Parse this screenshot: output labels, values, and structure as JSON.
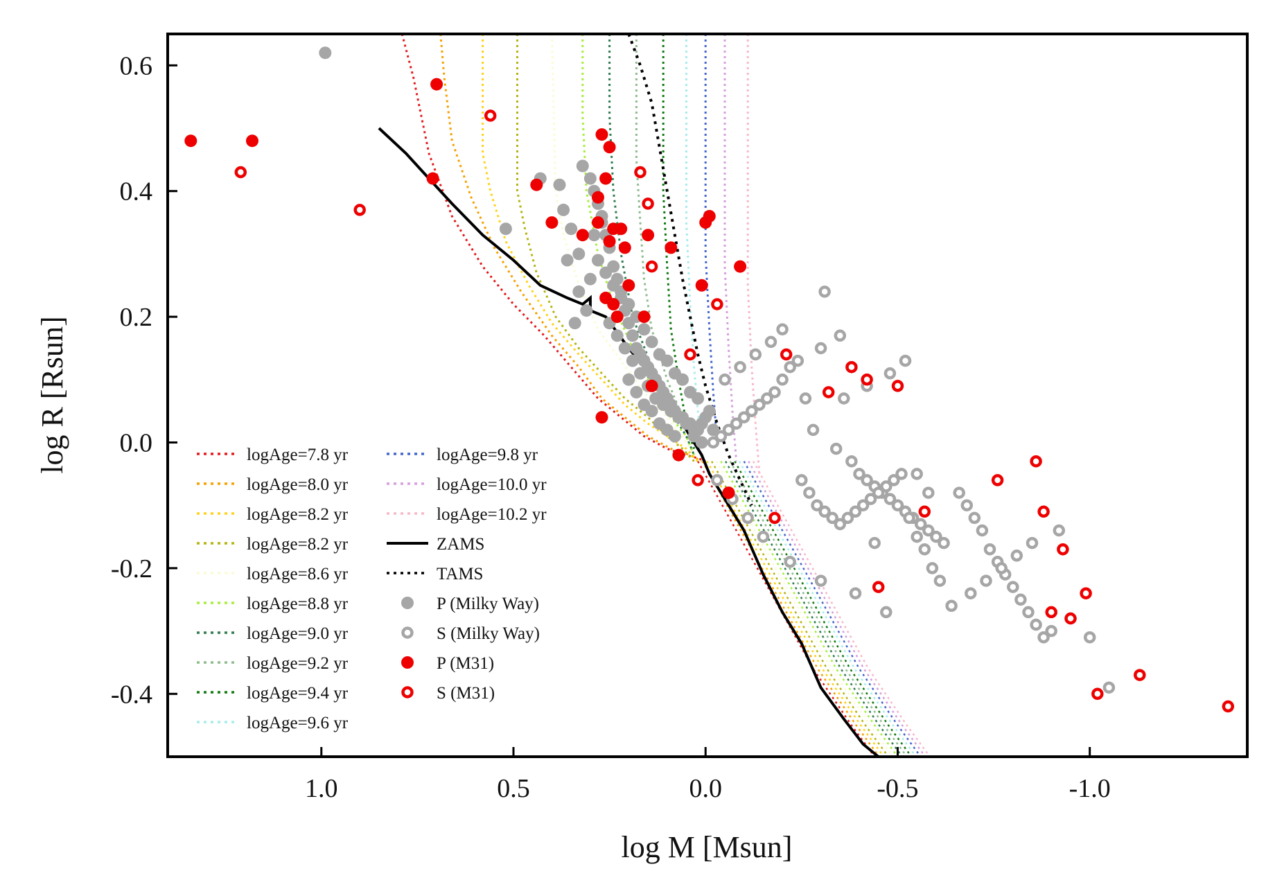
{
  "chart_data": {
    "type": "scatter",
    "title": "",
    "xlabel": "log M [Msun]",
    "ylabel": "log R [Rsun]",
    "xlim": [
      1.4,
      -1.41
    ],
    "ylim": [
      -0.5,
      0.65
    ],
    "xticks": [
      1.0,
      0.5,
      0.0,
      -0.5,
      -1.0
    ],
    "xtick_labels": [
      "1.0",
      "0.5",
      "0.0",
      "-0.5",
      "-1.0"
    ],
    "yticks": [
      0.6,
      0.4,
      0.2,
      0.0,
      -0.2,
      -0.4
    ],
    "ytick_labels": [
      "0.6",
      "0.4",
      "0.2",
      "0.0",
      "-0.2",
      "-0.4"
    ],
    "grid": false,
    "legend_position": "bottom-left",
    "isochrones": [
      {
        "name": "logAge=7.8 yr",
        "color": "#e31a1c",
        "x": [
          0.79,
          0.76,
          0.72,
          0.66,
          0.58,
          0.5,
          0.42,
          0.35,
          0.28,
          0.22,
          0.16,
          0.1,
          0.05,
          0.02,
          0.0
        ],
        "y": [
          0.65,
          0.58,
          0.46,
          0.36,
          0.28,
          0.22,
          0.17,
          0.12,
          0.07,
          0.04,
          0.01,
          -0.01,
          -0.02,
          -0.025,
          -0.03
        ]
      },
      {
        "name": "logAge=8.0 yr",
        "color": "#f5a000",
        "x": [
          0.69,
          0.68,
          0.66,
          0.61,
          0.55,
          0.48,
          0.4,
          0.33,
          0.27,
          0.21,
          0.15,
          0.09,
          0.04,
          0.01
        ],
        "y": [
          0.65,
          0.58,
          0.48,
          0.39,
          0.31,
          0.24,
          0.17,
          0.12,
          0.07,
          0.04,
          0.01,
          -0.01,
          -0.02,
          -0.03
        ]
      },
      {
        "name": "logAge=8.2 yr",
        "color": "#ffd21a",
        "x": [
          0.58,
          0.58,
          0.56,
          0.52,
          0.46,
          0.4,
          0.33,
          0.27,
          0.21,
          0.15,
          0.1,
          0.05,
          0.02
        ],
        "y": [
          0.65,
          0.46,
          0.4,
          0.32,
          0.25,
          0.19,
          0.14,
          0.1,
          0.06,
          0.03,
          0.01,
          -0.01,
          -0.03
        ]
      },
      {
        "name": "logAge=8.2 yr",
        "color": "#b4b414",
        "x": [
          0.49,
          0.49,
          0.47,
          0.44,
          0.39,
          0.33,
          0.27,
          0.21,
          0.15,
          0.1,
          0.06,
          0.03
        ],
        "y": [
          0.65,
          0.4,
          0.34,
          0.27,
          0.2,
          0.15,
          0.11,
          0.07,
          0.04,
          0.01,
          -0.01,
          -0.03
        ]
      },
      {
        "name": "logAge=8.6 yr",
        "color": "#fbfbd4",
        "x": [
          0.4,
          0.39,
          0.37,
          0.33,
          0.28,
          0.22,
          0.16,
          0.1,
          0.06,
          0.03
        ],
        "y": [
          0.65,
          0.4,
          0.33,
          0.25,
          0.18,
          0.13,
          0.08,
          0.04,
          0.01,
          -0.02
        ]
      },
      {
        "name": "logAge=8.8 yr",
        "color": "#a6ee3c",
        "x": [
          0.32,
          0.32,
          0.31,
          0.28,
          0.24,
          0.19,
          0.14,
          0.09,
          0.05,
          0.03
        ],
        "y": [
          0.65,
          0.52,
          0.4,
          0.3,
          0.22,
          0.15,
          0.09,
          0.04,
          0.01,
          -0.02
        ]
      },
      {
        "name": "logAge=9.0 yr",
        "color": "#2e7d4f",
        "x": [
          0.25,
          0.25,
          0.24,
          0.22,
          0.19,
          0.14,
          0.09,
          0.05,
          0.03
        ],
        "y": [
          0.65,
          0.52,
          0.4,
          0.3,
          0.2,
          0.12,
          0.05,
          0.01,
          -0.02
        ]
      },
      {
        "name": "logAge=9.2 yr",
        "color": "#8fbc8f",
        "x": [
          0.18,
          0.18,
          0.17,
          0.16,
          0.14,
          0.1,
          0.06,
          0.03
        ],
        "y": [
          0.65,
          0.45,
          0.35,
          0.26,
          0.18,
          0.1,
          0.04,
          -0.01
        ]
      },
      {
        "name": "logAge=9.4 yr",
        "color": "#117a11",
        "x": [
          0.11,
          0.11,
          0.1,
          0.09,
          0.07,
          0.05,
          0.03
        ],
        "y": [
          0.65,
          0.4,
          0.28,
          0.18,
          0.1,
          0.03,
          -0.01
        ]
      },
      {
        "name": "logAge=9.6 yr",
        "color": "#a8ecec",
        "x": [
          0.05,
          0.05,
          0.04,
          0.03,
          0.02,
          0.01
        ],
        "y": [
          0.65,
          0.35,
          0.22,
          0.12,
          0.05,
          0.0
        ]
      },
      {
        "name": "logAge=9.8 yr",
        "color": "#4466cc",
        "x": [
          0.0,
          0.0,
          -0.01,
          -0.02,
          -0.03
        ],
        "y": [
          0.65,
          0.3,
          0.18,
          0.08,
          0.0
        ]
      },
      {
        "name": "logAge=10.0  yr",
        "color": "#d59fdc",
        "x": [
          -0.05,
          -0.05,
          -0.06,
          -0.07,
          -0.08
        ],
        "y": [
          0.65,
          0.28,
          0.15,
          0.05,
          -0.03
        ]
      },
      {
        "name": "logAge=10.2  yr",
        "color": "#f8b8c8",
        "x": [
          -0.11,
          -0.11,
          -0.12,
          -0.13,
          -0.14
        ],
        "y": [
          0.65,
          0.25,
          0.12,
          0.03,
          -0.05
        ]
      }
    ],
    "isochrone_tail": {
      "x": [
        0.02,
        -0.08,
        -0.18,
        -0.28,
        -0.38,
        -0.44
      ],
      "y": [
        -0.03,
        -0.14,
        -0.25,
        -0.36,
        -0.45,
        -0.5
      ]
    },
    "zams": {
      "name": "ZAMS",
      "color": "#000000",
      "x": [
        0.85,
        0.78,
        0.72,
        0.66,
        0.58,
        0.5,
        0.43,
        0.36,
        0.32,
        0.3,
        0.3,
        0.26,
        0.2,
        0.12,
        0.06,
        0.01,
        -0.01,
        -0.05,
        -0.1,
        -0.15,
        -0.2,
        -0.25,
        -0.3,
        -0.36,
        -0.41,
        -0.45
      ],
      "y": [
        0.5,
        0.46,
        0.42,
        0.38,
        0.33,
        0.29,
        0.25,
        0.23,
        0.22,
        0.23,
        0.21,
        0.2,
        0.15,
        0.09,
        0.03,
        -0.02,
        -0.05,
        -0.09,
        -0.14,
        -0.21,
        -0.27,
        -0.32,
        -0.39,
        -0.44,
        -0.48,
        -0.5
      ]
    },
    "tams": {
      "name": "TAMS",
      "color": "#000000",
      "x": [
        0.2,
        0.17,
        0.14,
        0.12,
        0.1,
        0.08,
        0.06,
        0.04,
        0.02,
        0.0,
        -0.03,
        -0.06,
        -0.09,
        -0.12
      ],
      "y": [
        0.65,
        0.6,
        0.54,
        0.47,
        0.4,
        0.33,
        0.26,
        0.2,
        0.14,
        0.09,
        0.03,
        -0.02,
        -0.06,
        -0.1
      ]
    },
    "series": [
      {
        "name": "P (Milky Way)",
        "color": "#a6a6a6",
        "marker": "filled",
        "x": [
          0.99,
          0.52,
          0.43,
          0.38,
          0.37,
          0.35,
          0.33,
          0.32,
          0.3,
          0.29,
          0.28,
          0.27,
          0.26,
          0.25,
          0.24,
          0.23,
          0.22,
          0.21,
          0.2,
          0.19,
          0.18,
          0.17,
          0.16,
          0.15,
          0.14,
          0.13,
          0.12,
          0.11,
          0.1,
          0.09,
          0.08,
          0.07,
          0.06,
          0.05,
          0.04,
          0.03,
          0.02,
          0.01,
          0.0,
          -0.01,
          0.3,
          0.28,
          0.26,
          0.24,
          0.22,
          0.2,
          0.18,
          0.16,
          0.14,
          0.12,
          0.1,
          0.08,
          0.06,
          0.04,
          0.02,
          0.25,
          0.23,
          0.21,
          0.19,
          0.17,
          0.15,
          0.13,
          0.11,
          0.09,
          0.07,
          0.05,
          0.03,
          0.01,
          -0.02,
          0.33,
          0.31,
          0.29,
          0.27,
          0.36,
          0.34,
          0.2,
          0.18,
          0.16,
          0.14,
          0.12,
          0.1,
          0.08
        ],
        "y": [
          0.62,
          0.34,
          0.42,
          0.41,
          0.37,
          0.34,
          0.3,
          0.44,
          0.42,
          0.4,
          0.38,
          0.35,
          0.33,
          0.31,
          0.28,
          0.26,
          0.23,
          0.21,
          0.19,
          0.17,
          0.15,
          0.14,
          0.13,
          0.12,
          0.11,
          0.1,
          0.09,
          0.08,
          0.07,
          0.06,
          0.05,
          0.04,
          0.04,
          0.03,
          0.03,
          0.02,
          0.02,
          0.03,
          0.04,
          0.05,
          0.26,
          0.29,
          0.27,
          0.25,
          0.24,
          0.22,
          0.2,
          0.18,
          0.16,
          0.14,
          0.13,
          0.11,
          0.1,
          0.08,
          0.07,
          0.19,
          0.17,
          0.15,
          0.13,
          0.11,
          0.09,
          0.07,
          0.06,
          0.05,
          0.04,
          0.03,
          0.01,
          0.0,
          0.02,
          0.24,
          0.21,
          0.33,
          0.36,
          0.29,
          0.19,
          0.1,
          0.08,
          0.06,
          0.05,
          0.03,
          0.02,
          0.01
        ]
      },
      {
        "name": "S (Milky Way)",
        "color": "#a6a6a6",
        "marker": "ring",
        "x": [
          -0.31,
          -0.35,
          -0.3,
          -0.24,
          -0.22,
          -0.2,
          -0.18,
          -0.16,
          -0.14,
          -0.12,
          -0.1,
          -0.08,
          -0.06,
          -0.04,
          -0.02,
          -0.26,
          -0.28,
          -0.34,
          -0.38,
          -0.4,
          -0.42,
          -0.44,
          -0.46,
          -0.48,
          -0.5,
          -0.52,
          -0.54,
          -0.56,
          -0.58,
          -0.6,
          -0.62,
          -0.25,
          -0.27,
          -0.29,
          -0.31,
          -0.33,
          -0.35,
          -0.37,
          -0.39,
          -0.41,
          -0.43,
          -0.45,
          -0.47,
          -0.49,
          -0.51,
          -0.53,
          -0.55,
          -0.57,
          -0.59,
          -0.61,
          -0.66,
          -0.68,
          -0.7,
          -0.72,
          -0.74,
          -0.76,
          -0.78,
          -0.8,
          -0.82,
          -0.84,
          -0.86,
          -0.88,
          -0.9,
          -0.95,
          -1.0,
          -1.05,
          -0.64,
          -0.69,
          -0.73,
          -0.77,
          -0.81,
          -0.85,
          -0.92,
          -0.2,
          -0.17,
          -0.13,
          -0.09,
          -0.05,
          -0.48,
          -0.42,
          -0.36,
          -0.52,
          -0.44,
          -0.39,
          -0.47,
          -0.55,
          -0.58,
          -0.3,
          -0.22,
          -0.15,
          -0.11,
          -0.07,
          -0.03
        ],
        "y": [
          0.24,
          0.17,
          0.15,
          0.13,
          0.12,
          0.1,
          0.08,
          0.07,
          0.06,
          0.05,
          0.04,
          0.03,
          0.02,
          0.01,
          0.0,
          0.07,
          0.02,
          -0.01,
          -0.03,
          -0.05,
          -0.06,
          -0.07,
          -0.08,
          -0.09,
          -0.1,
          -0.11,
          -0.12,
          -0.13,
          -0.14,
          -0.15,
          -0.16,
          -0.06,
          -0.08,
          -0.1,
          -0.11,
          -0.12,
          -0.13,
          -0.12,
          -0.11,
          -0.1,
          -0.09,
          -0.08,
          -0.07,
          -0.06,
          -0.05,
          -0.12,
          -0.15,
          -0.17,
          -0.2,
          -0.22,
          -0.08,
          -0.1,
          -0.12,
          -0.14,
          -0.17,
          -0.19,
          -0.21,
          -0.23,
          -0.25,
          -0.27,
          -0.29,
          -0.31,
          -0.3,
          -0.28,
          -0.31,
          -0.39,
          -0.26,
          -0.24,
          -0.22,
          -0.2,
          -0.18,
          -0.16,
          -0.14,
          0.18,
          0.16,
          0.14,
          0.12,
          0.1,
          0.11,
          0.09,
          0.07,
          0.13,
          -0.16,
          -0.24,
          -0.27,
          -0.05,
          -0.08,
          -0.22,
          -0.19,
          -0.15,
          -0.12,
          -0.09,
          -0.06
        ]
      },
      {
        "name": "P (M31)",
        "color": "#ee0000",
        "marker": "filled",
        "x": [
          1.34,
          1.18,
          0.7,
          0.71,
          0.44,
          0.4,
          0.32,
          0.28,
          0.28,
          0.27,
          0.26,
          0.25,
          0.25,
          0.24,
          0.24,
          0.22,
          0.21,
          0.2,
          0.15,
          0.16,
          0.14,
          0.09,
          0.27,
          0.26,
          0.23,
          0.01,
          -0.01,
          0.07,
          0.0,
          -0.09,
          -0.06
        ],
        "y": [
          0.48,
          0.48,
          0.57,
          0.42,
          0.41,
          0.35,
          0.33,
          0.35,
          0.39,
          0.49,
          0.42,
          0.47,
          0.32,
          0.34,
          0.22,
          0.34,
          0.31,
          0.25,
          0.33,
          0.2,
          0.09,
          0.31,
          0.04,
          0.23,
          0.2,
          0.25,
          0.36,
          -0.02,
          0.35,
          0.28,
          -0.08
        ]
      },
      {
        "name": "S (M31)",
        "color": "#ee0000",
        "marker": "ring",
        "x": [
          1.21,
          0.9,
          0.56,
          0.17,
          0.15,
          0.14,
          0.04,
          0.02,
          -0.03,
          -0.21,
          -0.18,
          -0.32,
          -0.38,
          -0.42,
          -0.5,
          -0.57,
          -0.45,
          -0.76,
          -0.86,
          -0.88,
          -0.93,
          -0.9,
          -0.99,
          -0.95,
          -1.02,
          -1.13,
          -1.36
        ],
        "y": [
          0.43,
          0.37,
          0.52,
          0.43,
          0.38,
          0.28,
          0.14,
          -0.06,
          0.22,
          0.14,
          -0.12,
          0.08,
          0.12,
          0.1,
          0.09,
          -0.11,
          -0.23,
          -0.06,
          -0.03,
          -0.11,
          -0.17,
          -0.27,
          -0.24,
          -0.28,
          -0.4,
          -0.37,
          -0.42
        ]
      }
    ],
    "legend": {
      "col1": [
        {
          "label": "logAge=7.8 yr",
          "color": "#e31a1c",
          "kind": "dotted"
        },
        {
          "label": "logAge=8.0 yr",
          "color": "#f5a000",
          "kind": "dotted"
        },
        {
          "label": "logAge=8.2 yr",
          "color": "#ffd21a",
          "kind": "dotted"
        },
        {
          "label": "logAge=8.2 yr",
          "color": "#b4b414",
          "kind": "dotted"
        },
        {
          "label": "logAge=8.6 yr",
          "color": "#fbfbd4",
          "kind": "dotted"
        },
        {
          "label": "logAge=8.8 yr",
          "color": "#a6ee3c",
          "kind": "dotted"
        },
        {
          "label": "logAge=9.0 yr",
          "color": "#2e7d4f",
          "kind": "dotted"
        },
        {
          "label": "logAge=9.2 yr",
          "color": "#8fbc8f",
          "kind": "dotted"
        },
        {
          "label": "logAge=9.4 yr",
          "color": "#117a11",
          "kind": "dotted"
        },
        {
          "label": "logAge=9.6 yr",
          "color": "#a8ecec",
          "kind": "dotted"
        }
      ],
      "col2": [
        {
          "label": "logAge=9.8 yr",
          "color": "#4466cc",
          "kind": "dotted"
        },
        {
          "label": "logAge=10.0  yr",
          "color": "#d59fdc",
          "kind": "dotted"
        },
        {
          "label": "logAge=10.2  yr",
          "color": "#f8b8c8",
          "kind": "dotted"
        },
        {
          "label": "ZAMS",
          "color": "#000000",
          "kind": "solid"
        },
        {
          "label": "TAMS",
          "color": "#000000",
          "kind": "dotted"
        },
        {
          "label": "P (Milky Way)",
          "color": "#a6a6a6",
          "kind": "filled"
        },
        {
          "label": "S (Milky Way)",
          "color": "#a6a6a6",
          "kind": "ring"
        },
        {
          "label": "P (M31)",
          "color": "#ee0000",
          "kind": "filled"
        },
        {
          "label": "S (M31)",
          "color": "#ee0000",
          "kind": "ring"
        }
      ]
    }
  }
}
